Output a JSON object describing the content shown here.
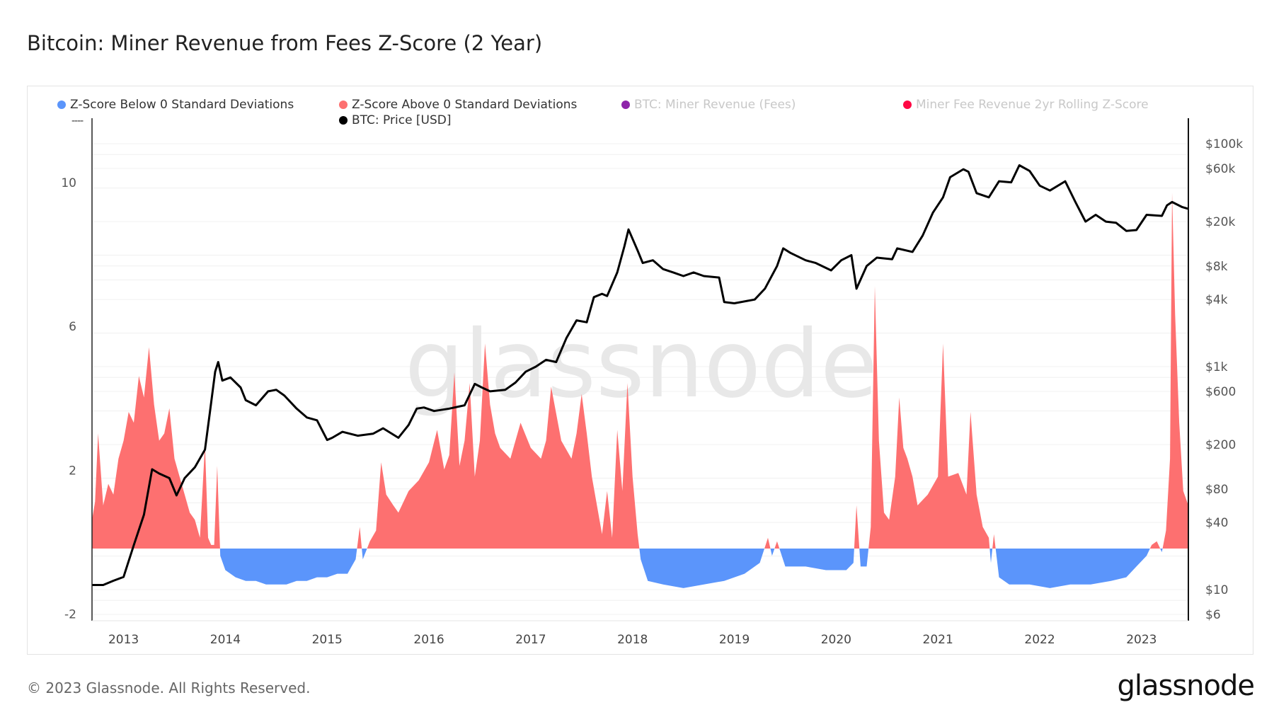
{
  "title": "Bitcoin: Miner Revenue from Fees Z-Score (2 Year)",
  "footer": "© 2023 Glassnode. All Rights Reserved.",
  "logo": "glassnode",
  "watermark": "glassnode",
  "legend": {
    "pager": "----",
    "items": [
      {
        "label": "Z-Score Below 0 Standard Deviations",
        "color": "#5b95fb",
        "active": true
      },
      {
        "label": "Z-Score Above 0 Standard Deviations",
        "color": "#fd7070",
        "active": true
      },
      {
        "label": "BTC: Miner Revenue (Fees)",
        "color": "#8e24aa",
        "active": false
      },
      {
        "label": "Miner Fee Revenue 2yr Rolling Z-Score",
        "color": "#ff0844",
        "active": false
      },
      {
        "label": "BTC: Price [USD]",
        "color": "#000000",
        "active": true
      }
    ]
  },
  "chart_data": {
    "type": "area",
    "title": "Bitcoin: Miner Revenue from Fees Z-Score (2 Year)",
    "x_ticks": [
      "2013",
      "2014",
      "2015",
      "2016",
      "2017",
      "2018",
      "2019",
      "2020",
      "2021",
      "2022",
      "2023"
    ],
    "xlim": [
      2012.69,
      2023.46
    ],
    "y_left": {
      "ticks": [
        -2,
        2,
        6,
        10
      ],
      "ylim": [
        -2,
        12
      ]
    },
    "y_right": {
      "scale": "log",
      "ticks": [
        "$6",
        "$10",
        "$40",
        "$80",
        "$200",
        "$600",
        "$1k",
        "$4k",
        "$8k",
        "$20k",
        "$60k",
        "$100k"
      ],
      "tick_values": [
        6,
        10,
        40,
        80,
        200,
        600,
        1000,
        4000,
        8000,
        20000,
        60000,
        100000
      ],
      "ylim": [
        6,
        100000
      ]
    },
    "grid": true,
    "legend_placement": "top",
    "zscore": {
      "x": [
        2012.69,
        2012.72,
        2012.75,
        2012.8,
        2012.85,
        2012.9,
        2012.95,
        2013.0,
        2013.05,
        2013.1,
        2013.15,
        2013.2,
        2013.25,
        2013.3,
        2013.35,
        2013.4,
        2013.45,
        2013.5,
        2013.55,
        2013.6,
        2013.65,
        2013.7,
        2013.75,
        2013.8,
        2013.83,
        2013.86,
        2013.89,
        2013.92,
        2013.95,
        2014.0,
        2014.1,
        2014.2,
        2014.3,
        2014.4,
        2014.5,
        2014.6,
        2014.7,
        2014.8,
        2014.9,
        2015.0,
        2015.1,
        2015.2,
        2015.28,
        2015.32,
        2015.35,
        2015.42,
        2015.48,
        2015.53,
        2015.58,
        2015.65,
        2015.7,
        2015.8,
        2015.9,
        2016.0,
        2016.08,
        2016.15,
        2016.2,
        2016.25,
        2016.3,
        2016.35,
        2016.4,
        2016.45,
        2016.5,
        2016.55,
        2016.6,
        2016.65,
        2016.7,
        2016.8,
        2016.9,
        2017.0,
        2017.1,
        2017.15,
        2017.2,
        2017.3,
        2017.4,
        2017.45,
        2017.5,
        2017.55,
        2017.6,
        2017.65,
        2017.7,
        2017.75,
        2017.8,
        2017.85,
        2017.9,
        2017.95,
        2018.0,
        2018.05,
        2018.08,
        2018.15,
        2018.3,
        2018.5,
        2018.7,
        2018.9,
        2019.1,
        2019.25,
        2019.33,
        2019.37,
        2019.42,
        2019.5,
        2019.7,
        2019.9,
        2020.1,
        2020.17,
        2020.2,
        2020.24,
        2020.3,
        2020.34,
        2020.38,
        2020.42,
        2020.47,
        2020.52,
        2020.58,
        2020.62,
        2020.66,
        2020.7,
        2020.75,
        2020.8,
        2020.9,
        2021.0,
        2021.05,
        2021.1,
        2021.2,
        2021.28,
        2021.32,
        2021.38,
        2021.44,
        2021.5,
        2021.52,
        2021.55,
        2021.6,
        2021.7,
        2021.9,
        2022.1,
        2022.3,
        2022.5,
        2022.7,
        2022.85,
        2022.95,
        2023.05,
        2023.1,
        2023.15,
        2023.2,
        2023.24,
        2023.28,
        2023.3,
        2023.33,
        2023.37,
        2023.41,
        2023.46
      ],
      "y": [
        0.8,
        1.3,
        3.2,
        1.2,
        1.8,
        1.5,
        2.5,
        3.0,
        3.8,
        3.5,
        4.8,
        4.2,
        5.6,
        4.0,
        3.0,
        3.2,
        3.9,
        2.5,
        2.0,
        1.5,
        1.0,
        0.8,
        0.3,
        2.9,
        0.3,
        0.1,
        0.1,
        2.3,
        -0.2,
        -0.6,
        -0.8,
        -0.9,
        -0.9,
        -1.0,
        -1.0,
        -1.0,
        -0.9,
        -0.9,
        -0.8,
        -0.8,
        -0.7,
        -0.7,
        -0.3,
        0.6,
        -0.3,
        0.2,
        0.5,
        2.4,
        1.5,
        1.2,
        1.0,
        1.6,
        1.9,
        2.4,
        3.3,
        2.2,
        2.6,
        4.9,
        2.3,
        3.0,
        4.6,
        2.0,
        3.0,
        5.7,
        4.0,
        3.2,
        2.8,
        2.5,
        3.5,
        2.8,
        2.5,
        3.0,
        4.5,
        3.0,
        2.5,
        3.2,
        4.3,
        3.2,
        2.0,
        1.2,
        0.4,
        1.6,
        0.3,
        3.3,
        1.6,
        4.6,
        2.0,
        0.4,
        -0.3,
        -0.9,
        -1.0,
        -1.1,
        -1.0,
        -0.9,
        -0.7,
        -0.4,
        0.3,
        -0.2,
        0.2,
        -0.5,
        -0.5,
        -0.6,
        -0.6,
        -0.4,
        1.2,
        -0.5,
        -0.5,
        0.6,
        7.3,
        3.0,
        1.0,
        0.8,
        2.0,
        4.2,
        2.8,
        2.5,
        2.0,
        1.2,
        1.5,
        2.0,
        5.7,
        2.0,
        2.1,
        1.5,
        3.8,
        1.5,
        0.6,
        0.3,
        -0.4,
        0.4,
        -0.8,
        -1.0,
        -1.0,
        -1.1,
        -1.0,
        -1.0,
        -0.9,
        -0.8,
        -0.5,
        -0.2,
        0.1,
        0.2,
        -0.1,
        0.5,
        2.5,
        9.9,
        6.5,
        3.5,
        1.6,
        1.2
      ]
    },
    "price": {
      "x": [
        2012.69,
        2012.8,
        2012.9,
        2013.0,
        2013.1,
        2013.2,
        2013.28,
        2013.35,
        2013.45,
        2013.52,
        2013.6,
        2013.7,
        2013.8,
        2013.85,
        2013.9,
        2013.93,
        2013.97,
        2014.05,
        2014.15,
        2014.2,
        2014.3,
        2014.42,
        2014.5,
        2014.58,
        2014.7,
        2014.8,
        2014.9,
        2015.0,
        2015.05,
        2015.15,
        2015.3,
        2015.45,
        2015.55,
        2015.7,
        2015.8,
        2015.88,
        2015.95,
        2016.05,
        2016.2,
        2016.35,
        2016.45,
        2016.52,
        2016.6,
        2016.75,
        2016.85,
        2016.95,
        2017.05,
        2017.15,
        2017.25,
        2017.35,
        2017.45,
        2017.55,
        2017.62,
        2017.7,
        2017.75,
        2017.85,
        2017.92,
        2017.96,
        2018.05,
        2018.1,
        2018.2,
        2018.3,
        2018.4,
        2018.5,
        2018.6,
        2018.7,
        2018.85,
        2018.9,
        2019.0,
        2019.2,
        2019.3,
        2019.42,
        2019.48,
        2019.55,
        2019.7,
        2019.8,
        2019.95,
        2020.05,
        2020.15,
        2020.2,
        2020.3,
        2020.4,
        2020.55,
        2020.6,
        2020.75,
        2020.85,
        2020.95,
        2021.05,
        2021.12,
        2021.25,
        2021.3,
        2021.38,
        2021.5,
        2021.6,
        2021.72,
        2021.8,
        2021.9,
        2022.0,
        2022.1,
        2022.25,
        2022.35,
        2022.45,
        2022.55,
        2022.65,
        2022.75,
        2022.85,
        2022.95,
        2023.05,
        2023.2,
        2023.25,
        2023.3,
        2023.4,
        2023.46
      ],
      "y": [
        11,
        11,
        12,
        13,
        25,
        47,
        120,
        110,
        100,
        70,
        100,
        125,
        180,
        400,
        900,
        1100,
        750,
        800,
        650,
        500,
        450,
        600,
        620,
        550,
        420,
        350,
        330,
        220,
        230,
        260,
        240,
        250,
        280,
        230,
        300,
        420,
        430,
        400,
        420,
        450,
        700,
        650,
        600,
        620,
        720,
        900,
        1000,
        1150,
        1100,
        1800,
        2600,
        2500,
        4200,
        4500,
        4300,
        7000,
        12000,
        17000,
        11000,
        8500,
        9000,
        7500,
        7000,
        6500,
        7000,
        6500,
        6300,
        3800,
        3700,
        4000,
        5000,
        8000,
        11500,
        10500,
        9000,
        8500,
        7300,
        9000,
        10000,
        5000,
        8000,
        9500,
        9200,
        11500,
        10700,
        15000,
        24000,
        33000,
        50000,
        59000,
        56000,
        36000,
        33000,
        46000,
        45000,
        64000,
        57000,
        42000,
        38000,
        46000,
        30000,
        20000,
        23000,
        20000,
        19500,
        16500,
        16800,
        23000,
        22500,
        28000,
        30000,
        27000,
        26000
      ]
    }
  }
}
